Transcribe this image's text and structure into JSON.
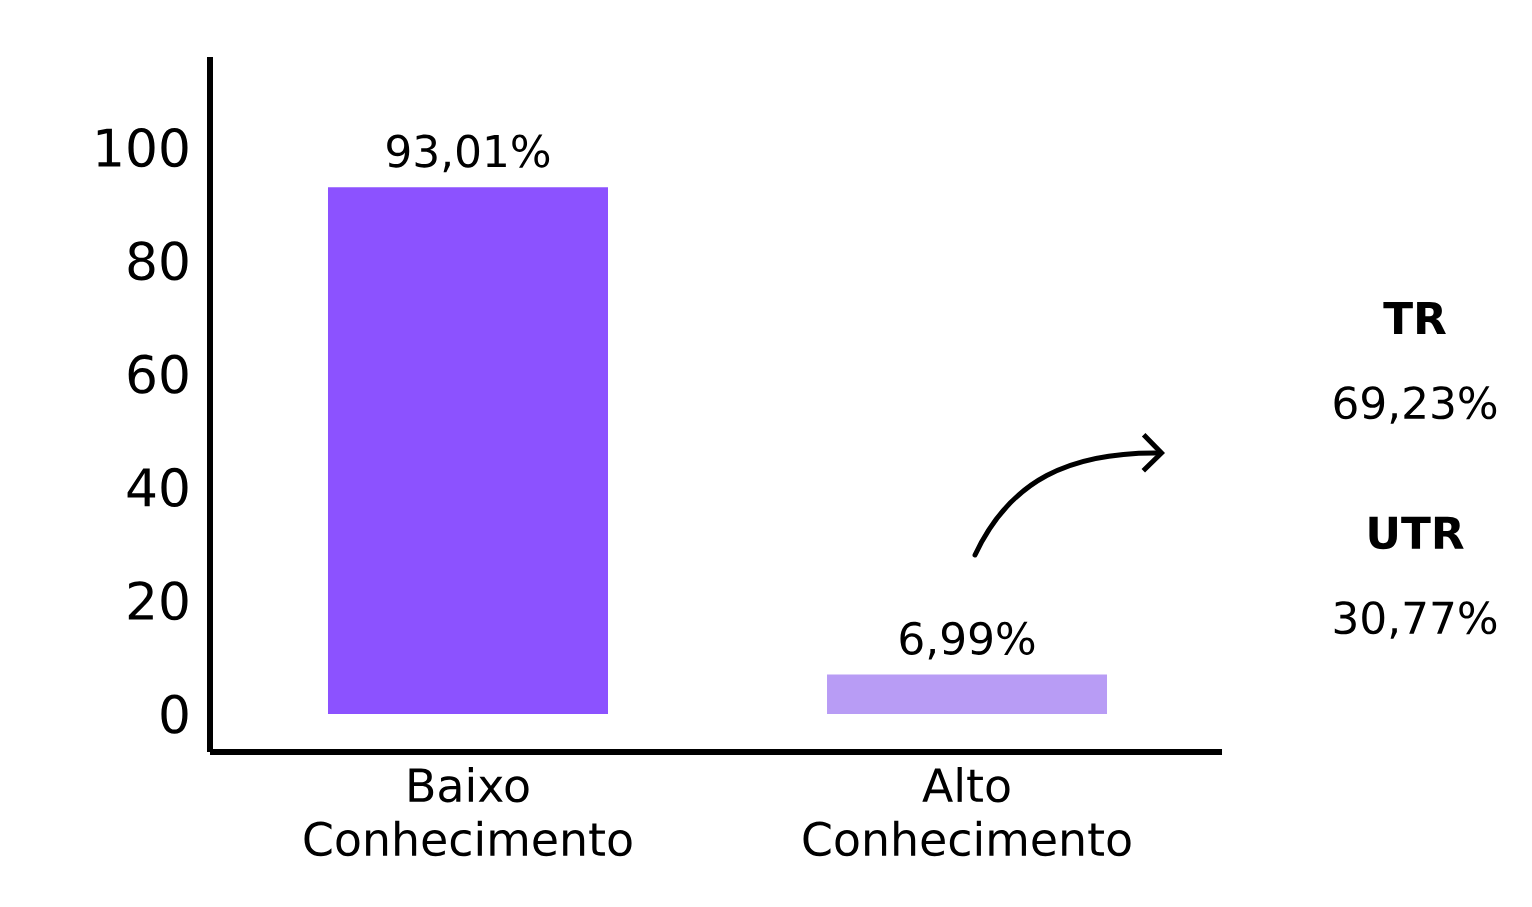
{
  "chart_data": {
    "type": "bar",
    "categories": [
      "Baixo Conhecimento",
      "Alto Conhecimento"
    ],
    "values": [
      93.01,
      6.99
    ],
    "colors": [
      "#8c52ff",
      "#b89cf5"
    ],
    "value_labels": [
      "93,01%",
      "6,99%"
    ],
    "ylim": [
      -6.7,
      116
    ],
    "yticks": [
      0,
      20,
      40,
      60,
      80,
      100
    ],
    "annotations": [
      "TR",
      "69,23%",
      "UTR",
      "30,77%"
    ]
  }
}
